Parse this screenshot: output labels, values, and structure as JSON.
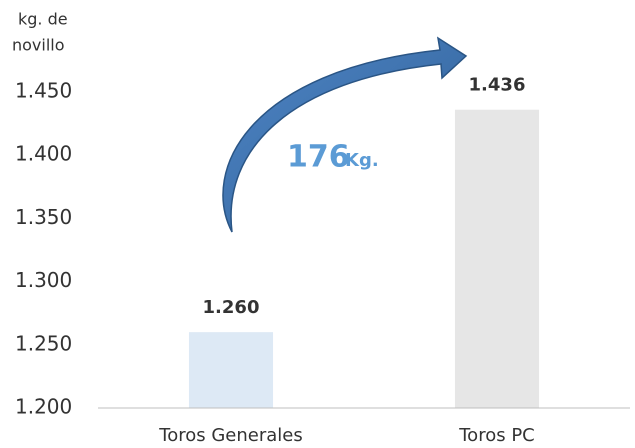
{
  "chart_data": {
    "type": "bar",
    "y_label": [
      "kg. de",
      "novillo"
    ],
    "categories": [
      "Toros Generales",
      "Toros PC"
    ],
    "series": [
      {
        "name": null,
        "values": [
          1260,
          1436
        ],
        "value_labels": [
          "1.260",
          "1.436"
        ],
        "colors": [
          "#dde9f5",
          "#e6e6e6"
        ]
      }
    ],
    "ylim": [
      1200,
      1450
    ],
    "yticks": [
      {
        "value": 1200,
        "label": "1.200"
      },
      {
        "value": 1250,
        "label": "1.250"
      },
      {
        "value": 1300,
        "label": "1.300"
      },
      {
        "value": 1350,
        "label": "1.350"
      },
      {
        "value": 1400,
        "label": "1.400"
      },
      {
        "value": 1450,
        "label": "1.450"
      }
    ],
    "grid": false,
    "annotation": {
      "value": "176",
      "unit": "Kg.",
      "color": "#5b9bd5"
    }
  }
}
